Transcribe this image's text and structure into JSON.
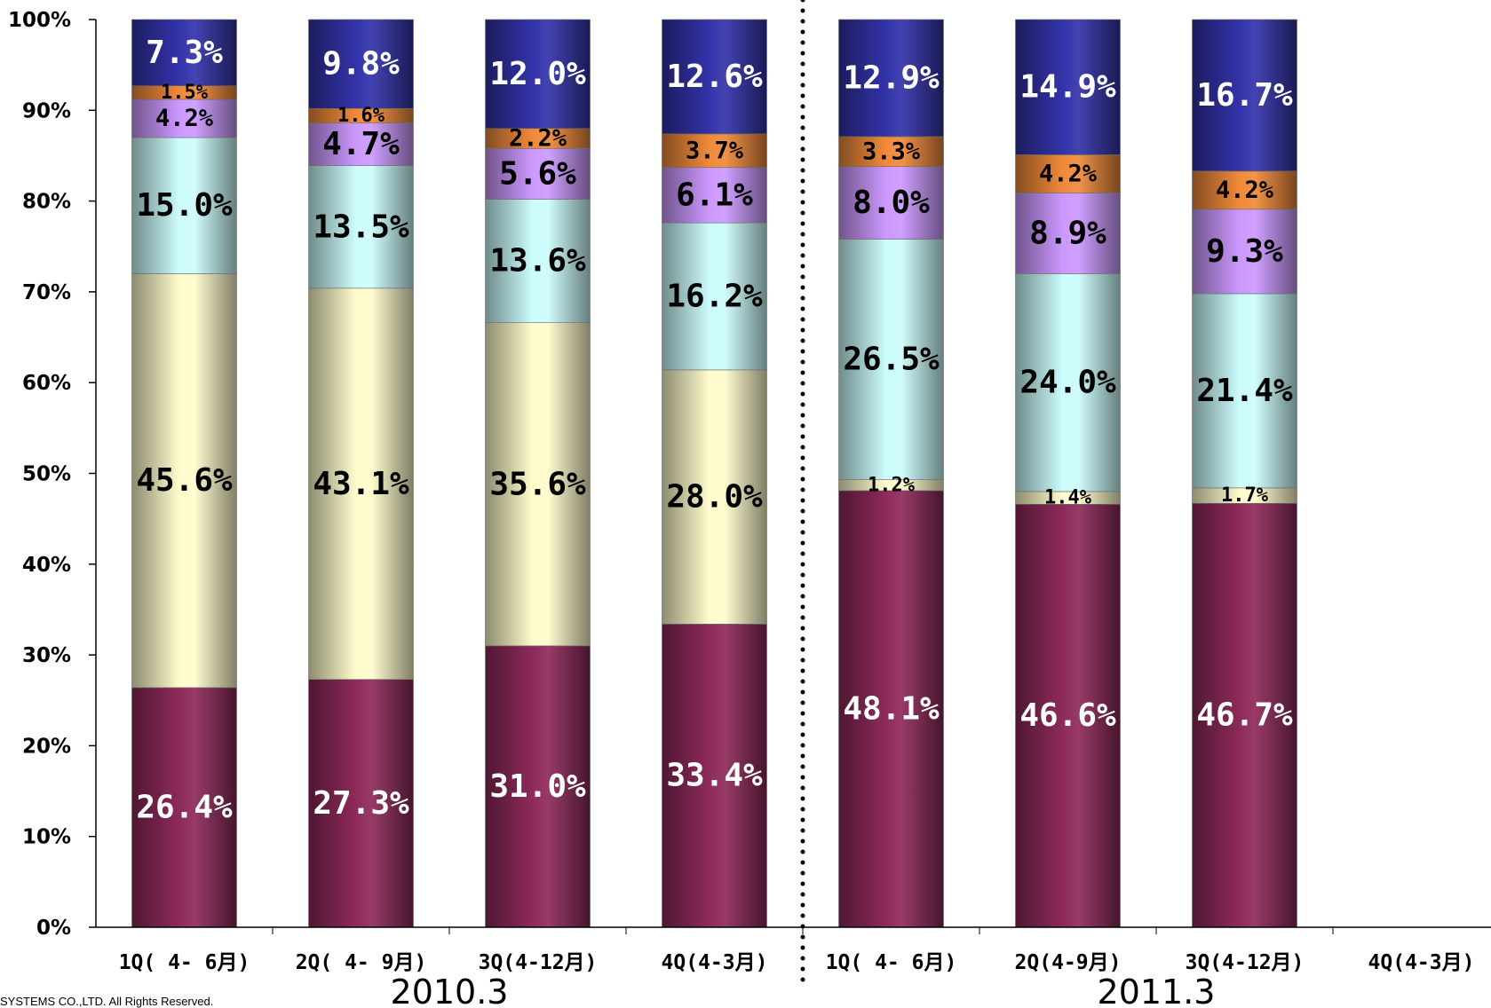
{
  "chart_data": {
    "type": "bar",
    "stacked": true,
    "percent": true,
    "ylim": [
      0,
      100
    ],
    "yticks": [
      "0%",
      "10%",
      "20%",
      "30%",
      "40%",
      "50%",
      "60%",
      "70%",
      "80%",
      "90%",
      "100%"
    ],
    "categories": [
      "1Q( 4- 6月)",
      "2Q( 4- 9月)",
      "3Q(4-12月)",
      "4Q(4-3月)",
      "1Q( 4- 6月)",
      "2Q(4-9月)",
      "3Q(4-12月)",
      "4Q(4-3月)"
    ],
    "groups": [
      {
        "label": "2010.3",
        "categories": [
          0,
          1,
          2,
          3
        ]
      },
      {
        "label": "2011.3",
        "categories": [
          4,
          5,
          6,
          7
        ]
      }
    ],
    "divider": "dotted line between 2010.3 and 2011.3",
    "series": [
      {
        "color": "#8e2a5a",
        "label_color": "#ffffff",
        "values": [
          26.4,
          27.3,
          31.0,
          33.4,
          48.1,
          46.6,
          46.7,
          null
        ],
        "labels": [
          "26.4%",
          "27.3%",
          "31.0%",
          "33.4%",
          "48.1%",
          "46.6%",
          "46.7%",
          null
        ]
      },
      {
        "color": "#fffccc",
        "label_color": "#000000",
        "values": [
          45.6,
          43.1,
          35.6,
          28.0,
          1.2,
          1.4,
          1.7,
          null
        ],
        "labels": [
          "45.6%",
          "43.1%",
          "35.6%",
          "28.0%",
          "1.2%",
          "1.4%",
          "1.7%",
          null
        ]
      },
      {
        "color": "#ccfcfc",
        "label_color": "#000000",
        "values": [
          15.0,
          13.5,
          13.6,
          16.2,
          26.5,
          24.0,
          21.4,
          null
        ],
        "labels": [
          "15.0%",
          "13.5%",
          "13.6%",
          "16.2%",
          "26.5%",
          "24.0%",
          "21.4%",
          null
        ]
      },
      {
        "color": "#cc99ff",
        "label_color": "#000000",
        "values": [
          4.2,
          4.7,
          5.6,
          6.1,
          8.0,
          8.9,
          9.3,
          null
        ],
        "labels": [
          "4.2%",
          "4.7%",
          "5.6%",
          "6.1%",
          "8.0%",
          "8.9%",
          "9.3%",
          null
        ]
      },
      {
        "color": "#f08a3a",
        "label_color": "#000000",
        "values": [
          1.5,
          1.6,
          2.2,
          3.7,
          3.3,
          4.2,
          4.2,
          null
        ],
        "labels": [
          "1.5%",
          "1.6%",
          "2.2%",
          "3.7%",
          "3.3%",
          "4.2%",
          "4.2%",
          null
        ]
      },
      {
        "color": "#3333aa",
        "label_color": "#ffffff",
        "values": [
          7.3,
          9.8,
          12.0,
          12.6,
          12.9,
          14.9,
          16.7,
          null
        ],
        "labels": [
          "7.3%",
          "9.8%",
          "12.0%",
          "12.6%",
          "12.9%",
          "14.9%",
          "16.7%",
          null
        ]
      }
    ]
  },
  "footer": {
    "copyright": "SYSTEMS CO.,LTD. All Rights Reserved."
  }
}
